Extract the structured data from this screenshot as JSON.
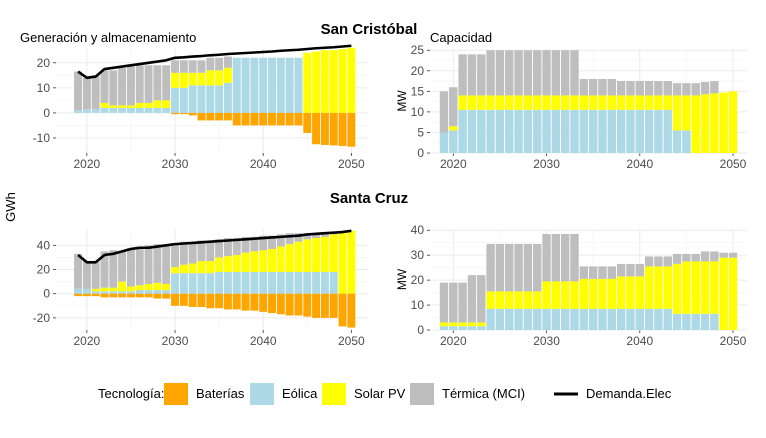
{
  "figure": {
    "ylabel_shared": "GWh",
    "colors": {
      "Baterías": "#FFA500",
      "Eólica": "#ADD8E6",
      "Solar PV": "#FFFF00",
      "Térmica (MCI)": "#BEBEBE",
      "Demanda.Elec": "#000000"
    }
  },
  "rows": [
    {
      "title": "San Cristóbal"
    },
    {
      "title": "Santa Cruz"
    }
  ],
  "legend": {
    "title": "Tecnología:",
    "items": [
      {
        "label": "Baterías",
        "key": "Baterías",
        "kind": "fill"
      },
      {
        "label": "Eólica",
        "key": "Eólica",
        "kind": "fill"
      },
      {
        "label": "Solar PV",
        "key": "Solar PV",
        "kind": "fill"
      },
      {
        "label": "Térmica (MCI)",
        "key": "Térmica (MCI)",
        "kind": "fill"
      },
      {
        "label": "Demanda.Elec",
        "key": "Demanda.Elec",
        "kind": "line"
      }
    ]
  },
  "chart_data": [
    {
      "id": "sc-gen",
      "type": "bar",
      "title": "Generación y almacenamiento",
      "ylabel": "",
      "xlim": [
        2016.5,
        2052
      ],
      "ylim": [
        -16,
        25.5
      ],
      "xticks": [
        2020,
        2030,
        2040,
        2050
      ],
      "yticks": [
        -10,
        0,
        10,
        20
      ],
      "grid": true,
      "x": [
        2019,
        2020,
        2021,
        2022,
        2023,
        2024,
        2025,
        2026,
        2027,
        2028,
        2029,
        2030,
        2031,
        2032,
        2033,
        2034,
        2035,
        2036,
        2037,
        2038,
        2039,
        2040,
        2041,
        2042,
        2043,
        2044,
        2045,
        2046,
        2047,
        2048,
        2049,
        2050
      ],
      "series": [
        {
          "name": "Eólica",
          "values": [
            1,
            1.5,
            1.5,
            2,
            2,
            2,
            2,
            2,
            2,
            2,
            2,
            10,
            10,
            11,
            11,
            11,
            11,
            12,
            22,
            22,
            22,
            22,
            22,
            22,
            22,
            22,
            0,
            0,
            0,
            0,
            0,
            0
          ]
        },
        {
          "name": "Solar PV",
          "values": [
            0,
            0,
            0,
            2,
            1,
            1,
            1,
            2,
            2,
            3,
            3,
            6,
            6,
            5,
            5,
            6,
            6,
            6,
            0,
            0,
            0,
            0,
            0,
            0,
            0,
            0,
            24,
            24.5,
            25,
            25,
            25.5,
            26
          ]
        },
        {
          "name": "Térmica (MCI)",
          "values": [
            15.5,
            12.5,
            13.5,
            13,
            14,
            15,
            15.5,
            15,
            15,
            14,
            14,
            5,
            5,
            5,
            5,
            5,
            5,
            4.5,
            0,
            0,
            0,
            0,
            0,
            0,
            0,
            0,
            0,
            0,
            0,
            0,
            0,
            0
          ]
        },
        {
          "name": "Baterías",
          "values": [
            0,
            0,
            0,
            0,
            0,
            0,
            0,
            0,
            0,
            0,
            0,
            -0.5,
            -0.5,
            -1,
            -3,
            -3,
            -3,
            -3,
            -5,
            -5,
            -5,
            -5,
            -5,
            -5,
            -5,
            -5,
            -8,
            -12.5,
            -12.8,
            -13,
            -13.2,
            -13.5
          ]
        }
      ],
      "line": {
        "name": "Demanda.Elec",
        "values": [
          16.5,
          14,
          14.5,
          17.5,
          18,
          18.5,
          19,
          19.5,
          20,
          20.5,
          21,
          22,
          22.2,
          22.5,
          22.7,
          23,
          23.2,
          23.5,
          23.7,
          23.9,
          24.1,
          24.3,
          24.5,
          24.8,
          25,
          25.2,
          25.5,
          25.8,
          26,
          26.2,
          26.5,
          26.8
        ]
      }
    },
    {
      "id": "sc-cap",
      "type": "bar",
      "title": "Capacidad",
      "ylabel": "MW",
      "xlim": [
        2017.5,
        2051.5
      ],
      "ylim": [
        0,
        25.3
      ],
      "xticks": [
        2020,
        2030,
        2040,
        2050
      ],
      "yticks": [
        0,
        5,
        10,
        15,
        20,
        25
      ],
      "grid": true,
      "x": [
        2019,
        2020,
        2021,
        2022,
        2023,
        2024,
        2025,
        2026,
        2027,
        2028,
        2029,
        2030,
        2031,
        2032,
        2033,
        2034,
        2035,
        2036,
        2037,
        2038,
        2039,
        2040,
        2041,
        2042,
        2043,
        2044,
        2045,
        2046,
        2047,
        2048,
        2049,
        2050
      ],
      "series": [
        {
          "name": "Eólica",
          "values": [
            5,
            5.5,
            10.5,
            10.5,
            10.5,
            10.5,
            10.5,
            10.5,
            10.5,
            10.5,
            10.5,
            10.5,
            10.5,
            10.5,
            10.5,
            10.5,
            10.5,
            10.5,
            10.5,
            10.5,
            10.5,
            10.5,
            10.5,
            10.5,
            10.5,
            5.5,
            5.5,
            0,
            0,
            0,
            0,
            0
          ]
        },
        {
          "name": "Solar PV",
          "values": [
            0,
            1,
            3.5,
            3.5,
            3.5,
            3.5,
            3.5,
            3.5,
            3.5,
            3.5,
            3.5,
            3.5,
            3.5,
            3.5,
            3.5,
            3.5,
            3.5,
            3.5,
            3.5,
            3.5,
            3.5,
            3.5,
            3.5,
            3.5,
            3.5,
            8.5,
            8.5,
            14,
            14.3,
            14.5,
            14.7,
            15
          ]
        },
        {
          "name": "Térmica (MCI)",
          "values": [
            10,
            9.5,
            10,
            10,
            10,
            11,
            11,
            11,
            11,
            11,
            11,
            11,
            11,
            11,
            11,
            4,
            4,
            4,
            4,
            3.5,
            3.5,
            3.5,
            3.5,
            3.5,
            3.5,
            3,
            3,
            3,
            3,
            3,
            0,
            0
          ]
        }
      ]
    },
    {
      "id": "scz-gen",
      "type": "bar",
      "title": "",
      "ylabel": "",
      "xlim": [
        2016.5,
        2052
      ],
      "ylim": [
        -30,
        53.5
      ],
      "xticks": [
        2020,
        2030,
        2040,
        2050
      ],
      "yticks": [
        -20,
        0,
        20,
        40
      ],
      "grid": true,
      "x": [
        2019,
        2020,
        2021,
        2022,
        2023,
        2024,
        2025,
        2026,
        2027,
        2028,
        2029,
        2030,
        2031,
        2032,
        2033,
        2034,
        2035,
        2036,
        2037,
        2038,
        2039,
        2040,
        2041,
        2042,
        2043,
        2044,
        2045,
        2046,
        2047,
        2048,
        2049,
        2050
      ],
      "series": [
        {
          "name": "Eólica",
          "values": [
            4,
            4,
            2,
            2,
            2,
            2,
            2,
            3,
            3,
            3,
            3,
            17,
            17,
            17,
            17,
            17,
            18,
            18,
            18,
            18,
            18,
            18,
            18,
            18,
            18,
            18,
            18,
            18,
            18,
            18,
            0,
            0
          ]
        },
        {
          "name": "Solar PV",
          "values": [
            0,
            0,
            2,
            3,
            3,
            8,
            4,
            4,
            5,
            6,
            5,
            5,
            7,
            8,
            10,
            10,
            12,
            13,
            14,
            16,
            17,
            18,
            19,
            21,
            23,
            25,
            27,
            28,
            29,
            31,
            51,
            52
          ]
        },
        {
          "name": "Térmica (MCI)",
          "values": [
            29,
            23,
            23,
            30,
            31,
            25,
            32,
            32,
            32,
            32,
            33,
            20,
            19,
            18,
            17,
            17,
            15,
            15,
            14,
            13,
            12,
            12,
            11,
            10,
            9,
            7,
            5,
            4,
            3,
            2,
            0,
            0
          ]
        },
        {
          "name": "Baterías",
          "values": [
            -2,
            -2,
            -2,
            -3,
            -3,
            -3,
            -3,
            -3,
            -3,
            -4,
            -4,
            -10,
            -10,
            -11,
            -11,
            -12,
            -12,
            -13,
            -13,
            -14,
            -14,
            -15,
            -16,
            -17,
            -18,
            -18,
            -19,
            -20,
            -20,
            -20,
            -27,
            -28
          ]
        }
      ],
      "line": {
        "name": "Demanda.Elec",
        "values": [
          32,
          26,
          26,
          32,
          33,
          35,
          37,
          38,
          38,
          39,
          40,
          41,
          41.5,
          42,
          42.5,
          43,
          43.5,
          44,
          44.5,
          45,
          45.5,
          46,
          46.5,
          47,
          47.5,
          48,
          49,
          49.5,
          50,
          50.5,
          51,
          52
        ]
      }
    },
    {
      "id": "scz-cap",
      "type": "bar",
      "title": "",
      "ylabel": "MW",
      "xlim": [
        2017.5,
        2051.5
      ],
      "ylim": [
        0,
        40.5
      ],
      "xticks": [
        2020,
        2030,
        2040,
        2050
      ],
      "yticks": [
        0,
        10,
        20,
        30,
        40
      ],
      "grid": true,
      "x": [
        2019,
        2020,
        2021,
        2022,
        2023,
        2024,
        2025,
        2026,
        2027,
        2028,
        2029,
        2030,
        2031,
        2032,
        2033,
        2034,
        2035,
        2036,
        2037,
        2038,
        2039,
        2040,
        2041,
        2042,
        2043,
        2044,
        2045,
        2046,
        2047,
        2048,
        2049,
        2050
      ],
      "series": [
        {
          "name": "Eólica",
          "values": [
            1.5,
            1.5,
            1.5,
            1.5,
            1.5,
            8.5,
            8.5,
            8.5,
            8.5,
            8.5,
            8.5,
            8.5,
            8.5,
            8.5,
            8.5,
            8.5,
            8.5,
            8.5,
            8.5,
            8.5,
            8.5,
            8.5,
            8.5,
            8.5,
            8.5,
            6.5,
            6.5,
            6.5,
            6.5,
            6.5,
            0,
            0
          ]
        },
        {
          "name": "Solar PV",
          "values": [
            1.5,
            1.5,
            1.5,
            1.5,
            1.5,
            7,
            7,
            7,
            7,
            7,
            7,
            11,
            11,
            11,
            11,
            12,
            12,
            12,
            12,
            13,
            13,
            13,
            17,
            17,
            17,
            20,
            21,
            21,
            21,
            21,
            29,
            29
          ]
        },
        {
          "name": "Térmica (MCI)",
          "values": [
            16,
            16,
            16,
            19,
            19,
            19,
            19,
            19,
            19,
            19,
            19,
            19,
            19,
            19,
            19,
            5,
            5,
            5,
            5,
            5,
            5,
            5,
            4,
            4,
            4,
            4,
            3,
            3,
            4,
            4,
            2,
            2
          ]
        }
      ]
    }
  ]
}
